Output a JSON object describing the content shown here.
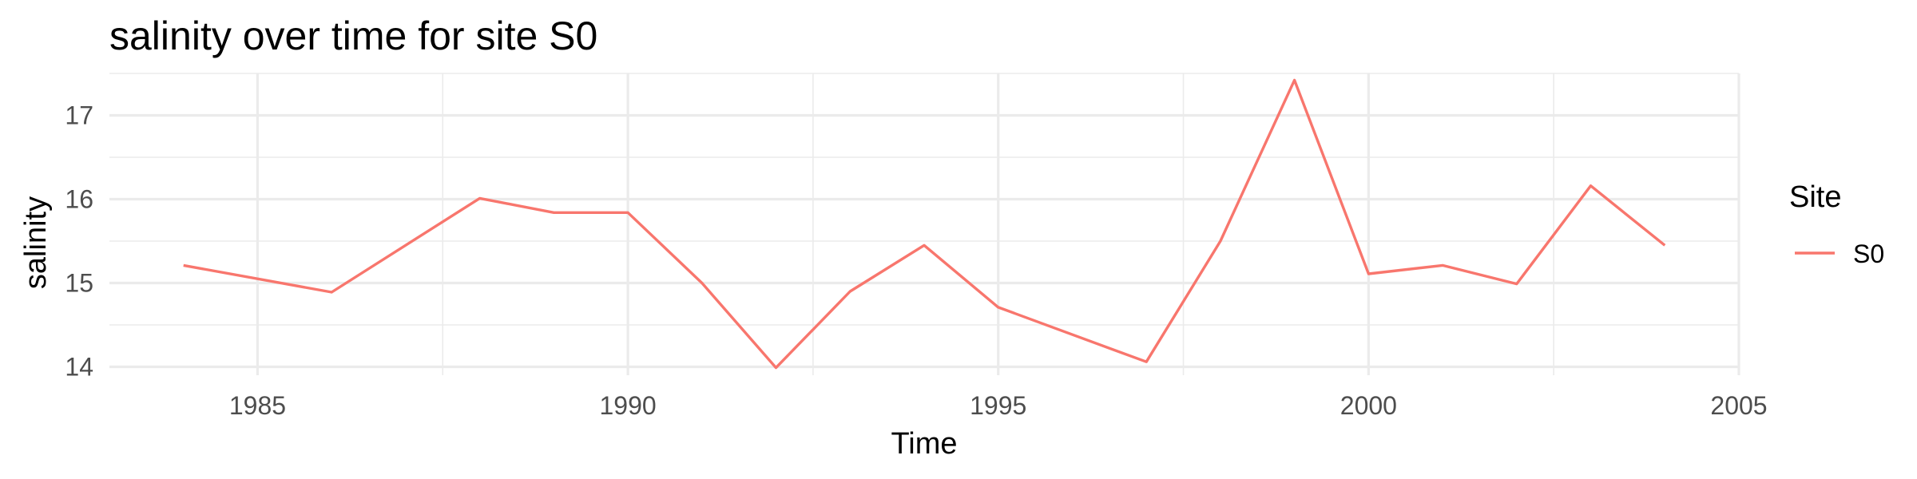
{
  "chart_data": {
    "type": "line",
    "title": "salinity over time for site S0",
    "xlabel": "Time",
    "ylabel": "salinity",
    "xlim": [
      1983,
      2005
    ],
    "ylim": [
      13.9,
      17.5
    ],
    "x_ticks": [
      "1985",
      "1990",
      "1995",
      "2000",
      "2005"
    ],
    "y_ticks": [
      "14",
      "15",
      "16",
      "17"
    ],
    "grid": true,
    "legend": {
      "title": "Site",
      "placement": "right"
    },
    "series": [
      {
        "name": "S0",
        "color": "#F8766D",
        "x": [
          1984,
          1986,
          1988,
          1989,
          1990,
          1991,
          1992,
          1993,
          1994,
          1995,
          1997,
          1998,
          1999,
          2000,
          2001,
          2002,
          2003,
          2004
        ],
        "y": [
          15.21,
          14.89,
          16.01,
          15.84,
          15.84,
          15.0,
          13.99,
          14.9,
          15.45,
          14.71,
          14.06,
          15.5,
          17.42,
          15.11,
          15.21,
          14.99,
          16.16,
          15.45
        ]
      }
    ]
  }
}
